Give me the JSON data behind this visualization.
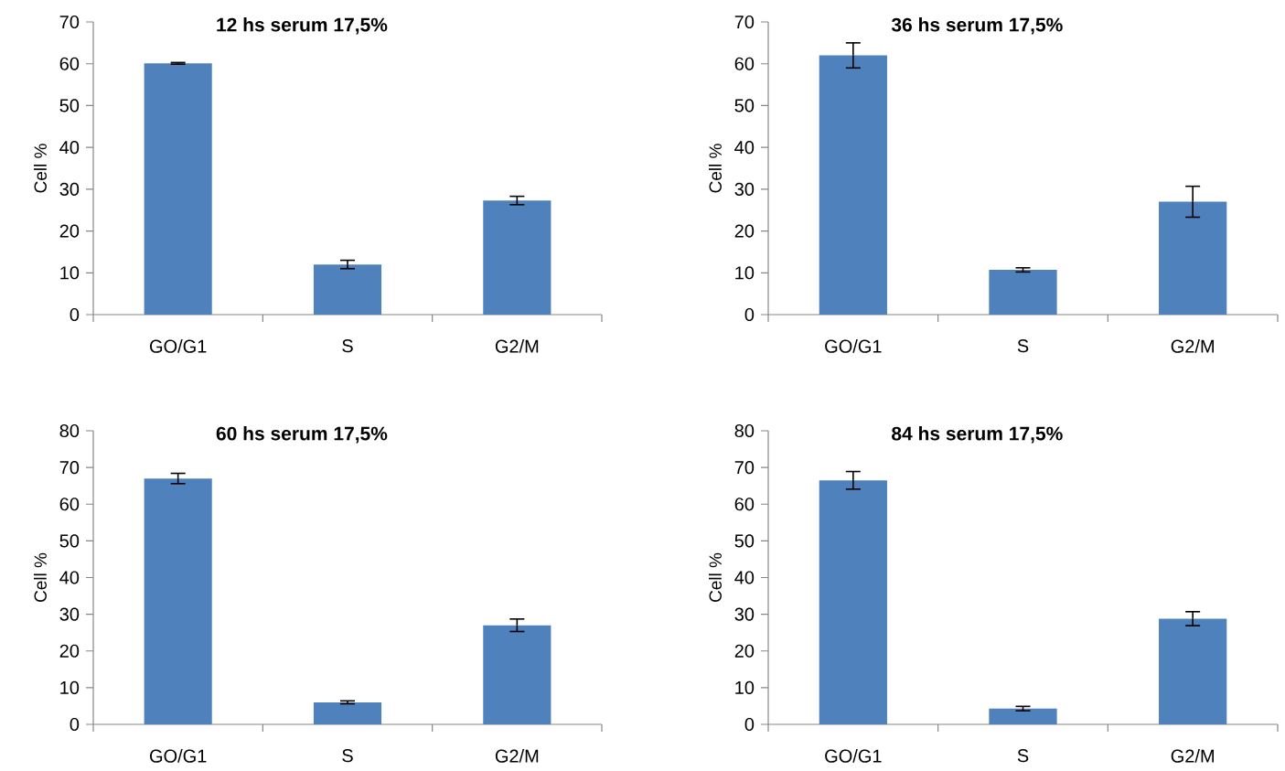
{
  "chart_data": [
    {
      "type": "bar",
      "title": "12 hs serum 17,5%",
      "ylabel": "Cell %",
      "categories": [
        "GO/G1",
        "S",
        "G2/M"
      ],
      "values": [
        60.1,
        12,
        27.3
      ],
      "errors": [
        0.2,
        1,
        1
      ],
      "color": "#4f81bd",
      "ylim": [
        0,
        70
      ],
      "yticks": [
        0,
        10,
        20,
        30,
        40,
        50,
        60,
        70
      ]
    },
    {
      "type": "bar",
      "title": "36 hs serum 17,5%",
      "ylabel": "Cell %",
      "categories": [
        "GO/G1",
        "S",
        "G2/M"
      ],
      "values": [
        62,
        10.7,
        27
      ],
      "errors": [
        3,
        0.5,
        3.7
      ],
      "color": "#4f81bd",
      "ylim": [
        0,
        70
      ],
      "yticks": [
        0,
        10,
        20,
        30,
        40,
        50,
        60,
        70
      ]
    },
    {
      "type": "bar",
      "title": "60 hs serum 17,5%",
      "ylabel": "Cell %",
      "categories": [
        "GO/G1",
        "S",
        "G2/M"
      ],
      "values": [
        67,
        6,
        27
      ],
      "errors": [
        1.4,
        0.4,
        1.7
      ],
      "color": "#4f81bd",
      "ylim": [
        0,
        80
      ],
      "yticks": [
        0,
        10,
        20,
        30,
        40,
        50,
        60,
        70,
        80
      ]
    },
    {
      "type": "bar",
      "title": "84 hs serum 17,5%",
      "ylabel": "Cell %",
      "categories": [
        "GO/G1",
        "S",
        "G2/M"
      ],
      "values": [
        66.5,
        4.3,
        28.8
      ],
      "errors": [
        2.4,
        0.6,
        1.9
      ],
      "color": "#4f81bd",
      "ylim": [
        0,
        80
      ],
      "yticks": [
        0,
        10,
        20,
        30,
        40,
        50,
        60,
        70,
        80
      ]
    }
  ]
}
